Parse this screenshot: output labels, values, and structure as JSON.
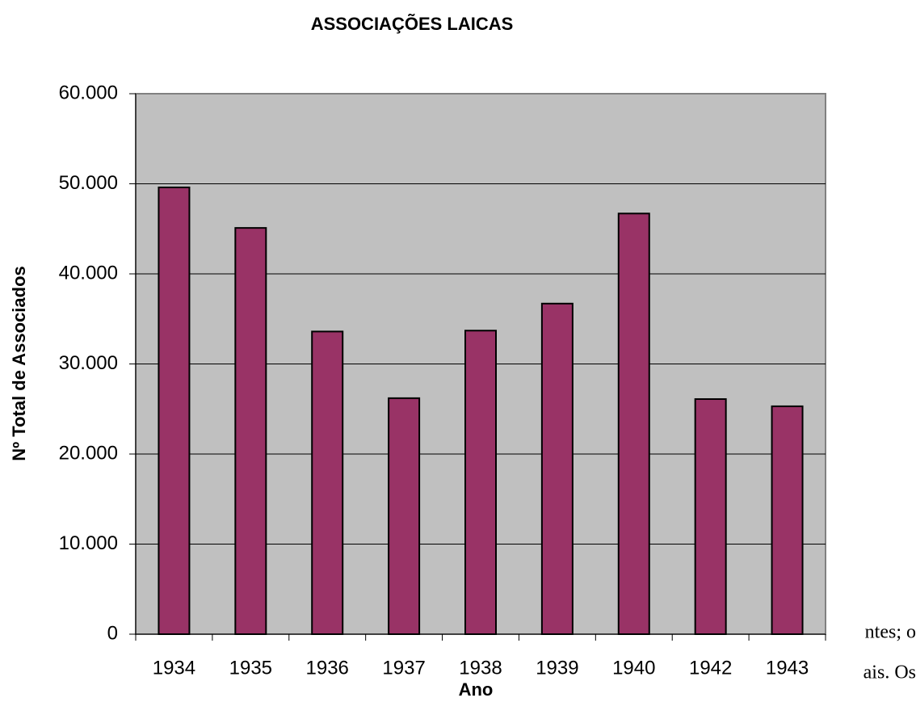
{
  "chart_data": {
    "type": "bar",
    "title": "ASSOCIAÇÕES LAICAS",
    "x_label": "Ano",
    "y_label": "Nº Total de Associados",
    "categories": [
      "1934",
      "1935",
      "1936",
      "1937",
      "1938",
      "1939",
      "1940",
      "1942",
      "1943"
    ],
    "values": [
      49600,
      45100,
      33600,
      26200,
      33700,
      36700,
      46700,
      26100,
      25300
    ],
    "color": "#993366",
    "ylim": [
      0,
      60000
    ],
    "yticks": [
      0,
      {
        "value": 10000,
        "label": "10.000"
      },
      {
        "value": 20000,
        "label": "20.000"
      },
      {
        "value": 30000,
        "label": "30.000"
      },
      {
        "value": 40000,
        "label": "40.000"
      },
      {
        "value": 50000,
        "label": "50.000"
      },
      {
        "value": 60000,
        "label": "60.000"
      }
    ],
    "grid": true
  },
  "fragments": [
    "ntes; o",
    "ais. Os"
  ]
}
